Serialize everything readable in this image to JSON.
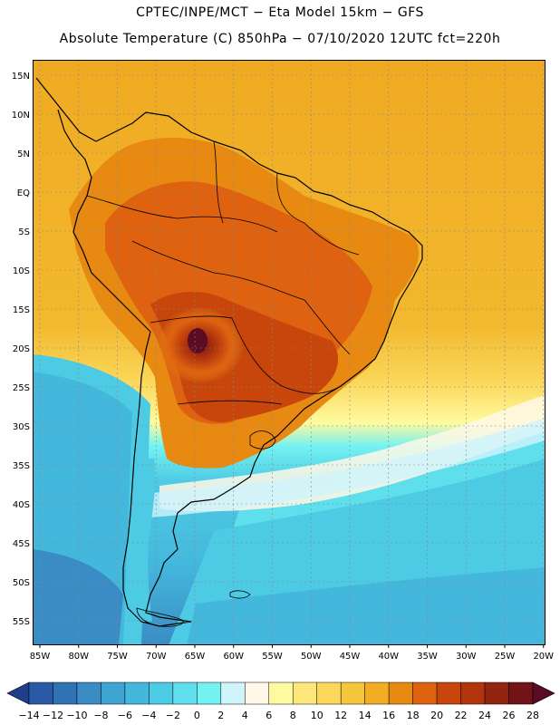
{
  "header": {
    "line1": "CPTEC/INPE/MCT −  Eta Model 15km − GFS",
    "line2": "Absolute Temperature (C) 850hPa − 07/10/2020 12UTC fct=220h"
  },
  "map": {
    "lat_labels": [
      "15N",
      "10N",
      "5N",
      "EQ",
      "5S",
      "10S",
      "15S",
      "20S",
      "25S",
      "30S",
      "35S",
      "40S",
      "45S",
      "50S",
      "55S"
    ],
    "lon_labels": [
      "85W",
      "80W",
      "75W",
      "70W",
      "65W",
      "60W",
      "55W",
      "50W",
      "45W",
      "40W",
      "35W",
      "30W",
      "25W",
      "20W"
    ]
  },
  "colorbar": {
    "labels": [
      "-14",
      "-12",
      "-10",
      "-8",
      "-6",
      "-4",
      "-2",
      "0",
      "2",
      "4",
      "6",
      "8",
      "10",
      "12",
      "14",
      "16",
      "18",
      "20",
      "22",
      "24",
      "26",
      "28"
    ],
    "colors": [
      "#1f3f8c",
      "#2a5aa6",
      "#3073b5",
      "#3a8cc4",
      "#3fa4d2",
      "#44b8dc",
      "#4ecbe4",
      "#5edfeb",
      "#74f2f2",
      "#d0f4fc",
      "#fff8e6",
      "#fffaa0",
      "#fde77a",
      "#fbd75a",
      "#f5c63c",
      "#f2ae20",
      "#e88a12",
      "#de6210",
      "#c8460c",
      "#b2340c",
      "#922410",
      "#701418",
      "#5a0c24"
    ]
  },
  "colors": {
    "background": "#ffffff",
    "ocean_warm": "#f2ae20",
    "ocean_cold": "#4ecbe4"
  }
}
